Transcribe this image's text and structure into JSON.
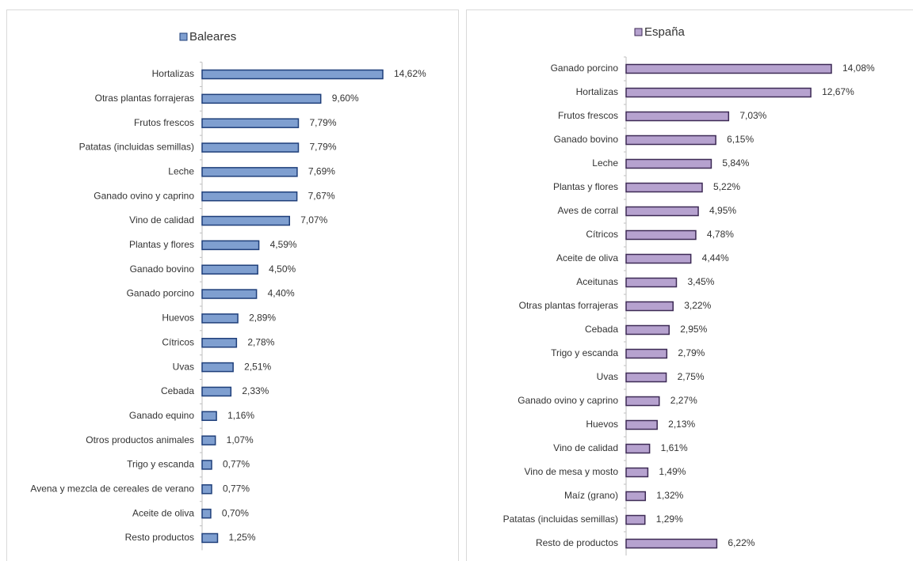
{
  "chart_data": [
    {
      "type": "bar",
      "orientation": "horizontal",
      "categories": [
        "Hortalizas",
        "Otras plantas forrajeras",
        "Frutos frescos",
        "Patatas (incluidas semillas)",
        "Leche",
        "Ganado ovino y caprino",
        "Vino de calidad",
        "Plantas y flores",
        "Ganado bovino",
        "Ganado porcino",
        "Huevos",
        "Cítricos",
        "Uvas",
        "Cebada",
        "Ganado equino",
        "Otros productos animales",
        "Trigo y escanda",
        "Avena y mezcla de cereales de verano",
        "Aceite de oliva",
        "Resto productos"
      ],
      "series": [
        {
          "name": "Baleares",
          "color": "#7f9fd0",
          "stroke": "#1f3f7a",
          "values": [
            14.62,
            9.6,
            7.79,
            7.79,
            7.69,
            7.67,
            7.07,
            4.59,
            4.5,
            4.4,
            2.89,
            2.78,
            2.51,
            2.33,
            1.16,
            1.07,
            0.77,
            0.77,
            0.7,
            1.25
          ],
          "value_labels": [
            "14,62%",
            "9,60%",
            "7,79%",
            "7,79%",
            "7,69%",
            "7,67%",
            "7,07%",
            "4,59%",
            "4,50%",
            "4,40%",
            "2,89%",
            "2,78%",
            "2,51%",
            "2,33%",
            "1,16%",
            "1,07%",
            "0,77%",
            "0,77%",
            "0,70%",
            "1,25%"
          ]
        }
      ],
      "legend": "top"
    },
    {
      "type": "bar",
      "orientation": "horizontal",
      "categories": [
        "Ganado porcino",
        "Hortalizas",
        "Frutos frescos",
        "Ganado bovino",
        "Leche",
        "Plantas y flores",
        "Aves de corral",
        "Cítricos",
        "Aceite de oliva",
        "Aceitunas",
        "Otras plantas forrajeras",
        "Cebada",
        "Trigo y escanda",
        "Uvas",
        "Ganado ovino y caprino",
        "Huevos",
        "Vino de calidad",
        "Vino de mesa y mosto",
        "Maíz (grano)",
        "Patatas (incluidas semillas)",
        "Resto de productos"
      ],
      "series": [
        {
          "name": "España",
          "color": "#b6a2cf",
          "stroke": "#3d2a55",
          "values": [
            14.08,
            12.67,
            7.03,
            6.15,
            5.84,
            5.22,
            4.95,
            4.78,
            4.44,
            3.45,
            3.22,
            2.95,
            2.79,
            2.75,
            2.27,
            2.13,
            1.61,
            1.49,
            1.32,
            1.29,
            6.22
          ],
          "value_labels": [
            "14,08%",
            "12,67%",
            "7,03%",
            "6,15%",
            "5,84%",
            "5,22%",
            "4,95%",
            "4,78%",
            "4,44%",
            "3,45%",
            "3,22%",
            "2,95%",
            "2,79%",
            "2,75%",
            "2,27%",
            "2,13%",
            "1,61%",
            "1,49%",
            "1,32%",
            "1,29%",
            "6,22%"
          ]
        }
      ],
      "legend": "top"
    }
  ]
}
